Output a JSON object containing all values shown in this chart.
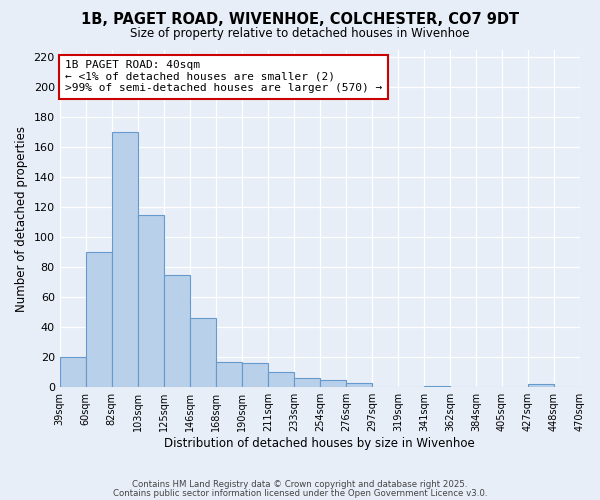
{
  "title": "1B, PAGET ROAD, WIVENHOE, COLCHESTER, CO7 9DT",
  "subtitle": "Size of property relative to detached houses in Wivenhoe",
  "xlabel": "Distribution of detached houses by size in Wivenhoe",
  "ylabel": "Number of detached properties",
  "bar_values": [
    20,
    90,
    170,
    115,
    75,
    46,
    17,
    16,
    10,
    6,
    5,
    3,
    0,
    0,
    1,
    0,
    0,
    0,
    2,
    0
  ],
  "bin_labels": [
    "39sqm",
    "60sqm",
    "82sqm",
    "103sqm",
    "125sqm",
    "146sqm",
    "168sqm",
    "190sqm",
    "211sqm",
    "233sqm",
    "254sqm",
    "276sqm",
    "297sqm",
    "319sqm",
    "341sqm",
    "362sqm",
    "384sqm",
    "405sqm",
    "427sqm",
    "448sqm",
    "470sqm"
  ],
  "bar_color": "#b8d0ea",
  "bar_edge_color": "#6699cc",
  "background_color": "#e8eef8",
  "annotation_box_color": "#ffffff",
  "annotation_box_edge_color": "#cc0000",
  "annotation_title": "1B PAGET ROAD: 40sqm",
  "annotation_line1": "← <1% of detached houses are smaller (2)",
  "annotation_line2": ">99% of semi-detached houses are larger (570) →",
  "ylim": [
    0,
    225
  ],
  "yticks": [
    0,
    20,
    40,
    60,
    80,
    100,
    120,
    140,
    160,
    180,
    200,
    220
  ],
  "footer1": "Contains HM Land Registry data © Crown copyright and database right 2025.",
  "footer2": "Contains public sector information licensed under the Open Government Licence v3.0."
}
